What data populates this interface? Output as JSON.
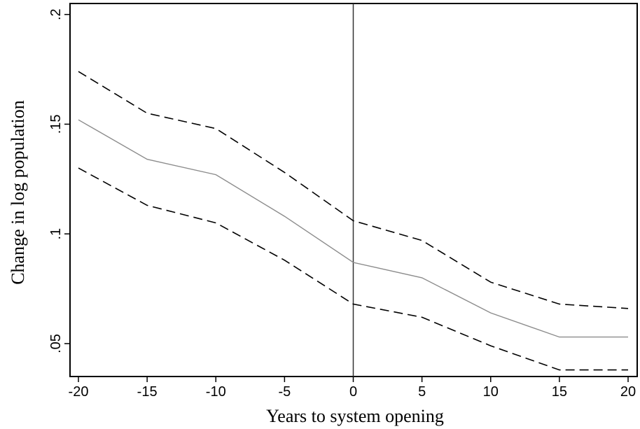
{
  "chart_data": {
    "type": "line",
    "title": "",
    "xlabel": "Years to system opening",
    "ylabel": "Change in log population",
    "xlim": [
      -20,
      20
    ],
    "ylim": [
      0.035,
      0.205
    ],
    "x_ticks": [
      -20,
      -15,
      -10,
      -5,
      0,
      5,
      10,
      15,
      20
    ],
    "x_tick_labels": [
      "-20",
      "-15",
      "-10",
      "-5",
      "0",
      "5",
      "10",
      "15",
      "20"
    ],
    "y_ticks": [
      0.05,
      0.1,
      0.15,
      0.2
    ],
    "y_tick_labels": [
      ".05",
      ".1",
      ".15",
      ".2"
    ],
    "grid": false,
    "legend": "none",
    "reference_line_x": 0,
    "x": [
      -20,
      -15,
      -10,
      -5,
      0,
      5,
      10,
      15,
      20
    ],
    "series": [
      {
        "style": "dashed",
        "color": "#000000",
        "values": [
          0.174,
          0.155,
          0.148,
          0.128,
          0.106,
          0.097,
          0.078,
          0.068,
          0.066
        ]
      },
      {
        "style": "solid",
        "color": "#8c8c8c",
        "values": [
          0.152,
          0.134,
          0.127,
          0.108,
          0.087,
          0.08,
          0.064,
          0.053,
          0.053
        ]
      },
      {
        "style": "dashed",
        "color": "#000000",
        "values": [
          0.13,
          0.113,
          0.105,
          0.088,
          0.068,
          0.062,
          0.049,
          0.038,
          0.038
        ]
      }
    ]
  }
}
